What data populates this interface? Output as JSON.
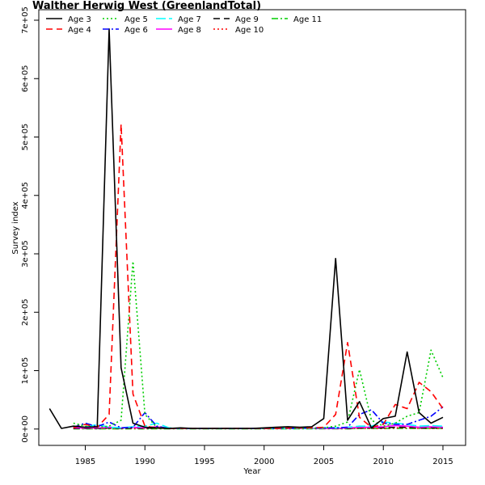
{
  "chart_data": {
    "type": "line",
    "title": "Walther Herwig West (GreenlandTotal)",
    "xlabel": "Year",
    "ylabel": "Survey index",
    "xlim": [
      1978.2,
      1016.2
    ],
    "xticks": [
      1985,
      1990,
      1995,
      2000,
      2005,
      2010,
      2015
    ],
    "xtick_labels": [
      "1985",
      "1990",
      "1995",
      "2000",
      "2005",
      "2010",
      "2015"
    ],
    "ylim": [
      -28000,
      718000
    ],
    "yticks": [
      0,
      100000,
      200000,
      300000,
      400000,
      500000,
      600000,
      700000
    ],
    "ytick_labels": [
      "0e+00",
      "1e+05",
      "2e+05",
      "3e+05",
      "4e+05",
      "5e+05",
      "6e+05",
      "7e+05"
    ],
    "grid": false,
    "legend_position": "top-left",
    "series": [
      {
        "name": "Age 3",
        "color": "#000000",
        "dash": "solid",
        "x": [
          1982,
          1983,
          1984,
          1985,
          1986,
          1987,
          1988,
          1989,
          1990,
          1991,
          1992,
          1993,
          1994,
          1995,
          1996,
          1997,
          1998,
          1999,
          2000,
          2001,
          2002,
          2003,
          2004,
          2005,
          2006,
          2007,
          2008,
          2009,
          2010,
          2011,
          2012,
          2013,
          2014,
          2015
        ],
        "values": [
          35000,
          1000,
          5000,
          3000,
          4000,
          685000,
          105000,
          10000,
          3000,
          2000,
          1000,
          2000,
          1000,
          1000,
          1000,
          1000,
          1000,
          1000,
          2000,
          3000,
          4000,
          3000,
          4000,
          18000,
          292000,
          15000,
          47000,
          2000,
          18000,
          22000,
          132000,
          28000,
          10000,
          20000
        ]
      },
      {
        "name": "Age 4",
        "color": "#ff0000",
        "dash": "8,5",
        "x": [
          1984,
          1985,
          1986,
          1987,
          1988,
          1989,
          1990,
          1991,
          1992,
          1993,
          1994,
          1995,
          1996,
          1997,
          1998,
          1999,
          2000,
          2001,
          2002,
          2003,
          2004,
          2005,
          2006,
          2007,
          2008,
          2009,
          2010,
          2011,
          2012,
          2013,
          2014,
          2015
        ],
        "values": [
          2000,
          8000,
          3000,
          25000,
          522000,
          60000,
          5000,
          2000,
          1000,
          1000,
          1000,
          1000,
          1000,
          1000,
          1000,
          1000,
          1000,
          1000,
          2000,
          2000,
          2000,
          3000,
          25000,
          148000,
          20000,
          3000,
          8000,
          42000,
          35000,
          80000,
          64000,
          35000
        ]
      },
      {
        "name": "Age 5",
        "color": "#00cd00",
        "dash": "2,3",
        "x": [
          1984,
          1985,
          1986,
          1987,
          1988,
          1989,
          1990,
          1991,
          1992,
          1993,
          1994,
          1995,
          1996,
          1997,
          1998,
          1999,
          2000,
          2001,
          2002,
          2003,
          2004,
          2005,
          2006,
          2007,
          2008,
          2009,
          2010,
          2011,
          2012,
          2013,
          2014,
          2015
        ],
        "values": [
          10000,
          5000,
          3000,
          5000,
          15000,
          287000,
          25000,
          3000,
          1000,
          1000,
          1000,
          1000,
          1000,
          1000,
          1000,
          1000,
          1000,
          1000,
          1000,
          1000,
          1000,
          2000,
          5000,
          12000,
          102000,
          15000,
          5000,
          10000,
          22000,
          28000,
          135000,
          88000
        ]
      },
      {
        "name": "Age 6",
        "color": "#0000ff",
        "dash": "8,3,2,3",
        "x": [
          1984,
          1985,
          1986,
          1987,
          1988,
          1989,
          1990,
          1991,
          1992,
          1993,
          1994,
          1995,
          1996,
          1997,
          1998,
          1999,
          2000,
          2001,
          2002,
          2003,
          2004,
          2005,
          2006,
          2007,
          2008,
          2009,
          2010,
          2011,
          2012,
          2013,
          2014,
          2015
        ],
        "values": [
          3000,
          10000,
          4000,
          12000,
          2000,
          3000,
          28000,
          5000,
          1000,
          1000,
          1000,
          1000,
          1000,
          1000,
          1000,
          1000,
          1000,
          1000,
          1000,
          2000,
          2000,
          2000,
          2000,
          3000,
          25000,
          33000,
          10000,
          8000,
          8000,
          15000,
          22000,
          38000
        ]
      },
      {
        "name": "Age 7",
        "color": "#00ffff",
        "dash": "12,4",
        "x": [
          1984,
          1985,
          1986,
          1987,
          1988,
          1989,
          1990,
          1991,
          1992,
          1993,
          1994,
          1995,
          1996,
          1997,
          1998,
          1999,
          2000,
          2001,
          2002,
          2003,
          2004,
          2005,
          2006,
          2007,
          2008,
          2009,
          2010,
          2011,
          2012,
          2013,
          2014,
          2015
        ],
        "values": [
          5000,
          3000,
          8000,
          3000,
          2000,
          4000,
          5000,
          10000,
          2000,
          1000,
          1000,
          1000,
          1000,
          1000,
          1000,
          1000,
          1000,
          1000,
          1000,
          1000,
          1000,
          2000,
          2000,
          3000,
          5000,
          5000,
          12000,
          10000,
          8000,
          5000,
          6000,
          5000
        ]
      },
      {
        "name": "Age 8",
        "color": "#ff00ff",
        "dash": "solid",
        "x": [
          1984,
          1985,
          1986,
          1987,
          1988,
          1989,
          1990,
          1991,
          1992,
          1993,
          1994,
          1995,
          1996,
          1997,
          1998,
          1999,
          2000,
          2001,
          2002,
          2003,
          2004,
          2005,
          2006,
          2007,
          2008,
          2009,
          2010,
          2011,
          2012,
          2013,
          2014,
          2015
        ],
        "values": [
          2000,
          2000,
          2000,
          3000,
          2000,
          3000,
          2000,
          4000,
          1000,
          1000,
          1000,
          1000,
          1000,
          1000,
          1000,
          1000,
          1000,
          1000,
          1000,
          1000,
          1000,
          1000,
          1000,
          2000,
          3000,
          3000,
          4000,
          6000,
          5000,
          3000,
          4000,
          3000
        ]
      },
      {
        "name": "Age 9",
        "color": "#000000",
        "dash": "8,5",
        "x": [
          1984,
          1985,
          1986,
          1987,
          1988,
          1989,
          1990,
          1991,
          1992,
          1993,
          1994,
          1995,
          1996,
          1997,
          1998,
          1999,
          2000,
          2001,
          2002,
          2003,
          2004,
          2005,
          2006,
          2007,
          2008,
          2009,
          2010,
          2011,
          2012,
          2013,
          2014,
          2015
        ],
        "values": [
          1000,
          1000,
          1000,
          2000,
          1000,
          2000,
          1000,
          2000,
          1000,
          1000,
          1000,
          1000,
          1000,
          1000,
          1000,
          1000,
          1000,
          1000,
          1000,
          1000,
          1000,
          1000,
          1000,
          1000,
          2000,
          2000,
          2000,
          3000,
          3000,
          2000,
          2000,
          2000
        ]
      },
      {
        "name": "Age 10",
        "color": "#ff0000",
        "dash": "2,3",
        "x": [
          1984,
          1985,
          1986,
          1987,
          1988,
          1989,
          1990,
          1991,
          1992,
          1993,
          1994,
          1995,
          1996,
          1997,
          1998,
          1999,
          2000,
          2001,
          2002,
          2003,
          2004,
          2005,
          2006,
          2007,
          2008,
          2009,
          2010,
          2011,
          2012,
          2013,
          2014,
          2015
        ],
        "values": [
          1000,
          1000,
          1000,
          1000,
          1000,
          1000,
          1000,
          1000,
          1000,
          1000,
          1000,
          1000,
          1000,
          1000,
          1000,
          1000,
          1000,
          1000,
          1000,
          1000,
          1000,
          1000,
          1000,
          1000,
          1000,
          1000,
          1000,
          2000,
          2000,
          1000,
          1000,
          1000
        ]
      },
      {
        "name": "Age 11",
        "color": "#00cd00",
        "dash": "8,3,2,3",
        "x": [
          1984,
          1985,
          1986,
          1987,
          1988,
          1989,
          1990,
          1991,
          1992,
          1993,
          1994,
          1995,
          1996,
          1997,
          1998,
          1999,
          2000,
          2001,
          2002,
          2003,
          2004,
          2005,
          2006,
          2007,
          2008,
          2009,
          2010,
          2011,
          2012,
          2013,
          2014,
          2015
        ],
        "values": [
          500,
          500,
          500,
          500,
          500,
          500,
          500,
          500,
          500,
          500,
          500,
          500,
          500,
          500,
          500,
          500,
          500,
          500,
          500,
          500,
          500,
          500,
          500,
          500,
          1000,
          1000,
          1000,
          1000,
          1000,
          1000,
          1000,
          1000
        ]
      }
    ]
  }
}
